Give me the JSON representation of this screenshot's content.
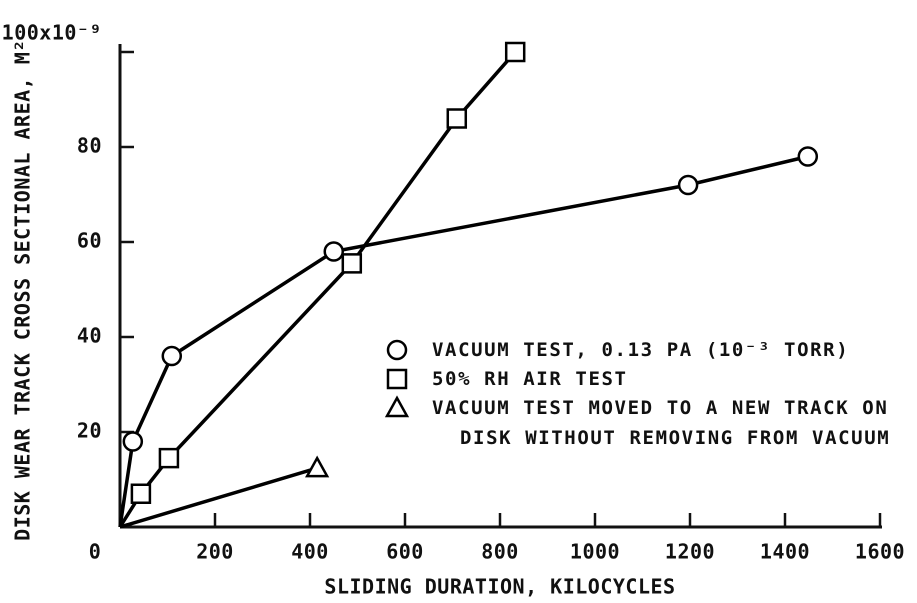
{
  "chart_data": {
    "type": "line",
    "xlabel": "SLIDING DURATION, KILOCYCLES",
    "ylabel": "DISK WEAR TRACK CROSS SECTIONAL AREA, M²",
    "xlim": [
      0,
      1600
    ],
    "xticks": [
      0,
      200,
      400,
      600,
      800,
      1000,
      1200,
      1400,
      1600
    ],
    "ylim": [
      0,
      100
    ],
    "yticks": [
      20,
      40,
      60,
      80,
      {
        "value": 100,
        "label": "100x10⁻⁹"
      }
    ],
    "series": [
      {
        "name": "VACUUM TEST, 0.13 PA (10⁻³ TORR)",
        "marker": "circle",
        "color": "#000000",
        "x": [
          27,
          109,
          450,
          1196,
          1448
        ],
        "values": [
          18,
          36,
          58,
          72,
          78
        ]
      },
      {
        "name": "50% RH AIR TEST",
        "marker": "square",
        "color": "#000000",
        "x": [
          44,
          103,
          488,
          709,
          832
        ],
        "values": [
          7,
          14.5,
          55.5,
          86,
          100
        ]
      },
      {
        "name": "VACUUM TEST MOVED TO A NEW TRACK ON DISK WITHOUT REMOVING FROM VACUUM",
        "marker": "triangle",
        "color": "#000000",
        "x": [
          415
        ],
        "values": [
          12.4
        ]
      }
    ]
  }
}
